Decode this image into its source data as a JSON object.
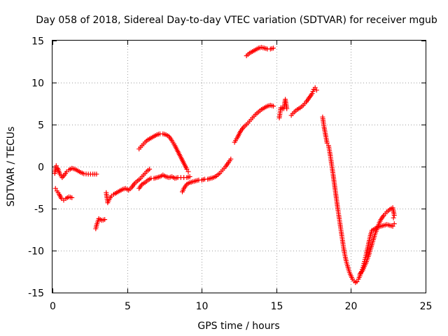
{
  "chart_data": {
    "type": "scatter",
    "title": "Day 058 of 2018, Sidereal Day-to-day VTEC variation (SDTVAR) for receiver mgub",
    "xlabel": "GPS time / hours",
    "ylabel": "SDTVAR / TECUs",
    "xlim": [
      0,
      25
    ],
    "ylim": [
      -15,
      15
    ],
    "xticks": [
      0,
      5,
      10,
      15,
      20,
      25
    ],
    "yticks": [
      -15,
      -10,
      -5,
      0,
      5,
      10,
      15
    ],
    "grid": true,
    "marker": "plus",
    "color": "#ff0000",
    "series": [
      {
        "points": [
          [
            0.15,
            -0.8
          ],
          [
            0.25,
            0.1
          ],
          [
            0.35,
            -0.2
          ],
          [
            0.5,
            -0.9
          ],
          [
            0.65,
            -1.3
          ],
          [
            0.8,
            -1.0
          ],
          [
            0.95,
            -0.6
          ],
          [
            1.1,
            -0.4
          ],
          [
            1.3,
            -0.2
          ],
          [
            1.5,
            -0.3
          ],
          [
            1.7,
            -0.5
          ],
          [
            1.9,
            -0.7
          ],
          [
            2.1,
            -0.85
          ],
          [
            2.4,
            -0.9
          ],
          [
            2.7,
            -0.9
          ],
          [
            2.95,
            -0.9
          ]
        ]
      },
      {
        "points": [
          [
            0.2,
            -2.6
          ],
          [
            0.3,
            -2.9
          ],
          [
            0.45,
            -3.3
          ],
          [
            0.6,
            -3.8
          ],
          [
            0.75,
            -4.0
          ],
          [
            0.9,
            -3.8
          ],
          [
            1.1,
            -3.6
          ],
          [
            1.3,
            -3.7
          ]
        ]
      },
      {
        "points": [
          [
            2.9,
            -7.4
          ],
          [
            2.95,
            -7.0
          ],
          [
            3.1,
            -6.2
          ],
          [
            3.3,
            -6.4
          ],
          [
            3.5,
            -6.3
          ]
        ]
      },
      {
        "points": [
          [
            3.6,
            -3.1
          ],
          [
            3.7,
            -4.3
          ],
          [
            3.8,
            -3.9
          ],
          [
            3.95,
            -3.5
          ],
          [
            4.1,
            -3.3
          ],
          [
            4.3,
            -3.1
          ],
          [
            4.5,
            -2.9
          ],
          [
            4.7,
            -2.7
          ],
          [
            4.9,
            -2.6
          ],
          [
            5.1,
            -2.8
          ],
          [
            5.3,
            -2.5
          ],
          [
            5.5,
            -2.0
          ],
          [
            5.7,
            -1.7
          ],
          [
            5.9,
            -1.4
          ],
          [
            6.1,
            -1.0
          ],
          [
            6.3,
            -0.6
          ],
          [
            6.5,
            -0.3
          ]
        ]
      },
      {
        "points": [
          [
            5.8,
            -2.6
          ],
          [
            6.0,
            -2.1
          ],
          [
            6.2,
            -1.9
          ],
          [
            6.4,
            -1.6
          ],
          [
            6.6,
            -1.4
          ],
          [
            6.8,
            -1.4
          ],
          [
            7.0,
            -1.3
          ],
          [
            7.2,
            -1.2
          ],
          [
            7.4,
            -1.0
          ],
          [
            7.6,
            -1.2
          ],
          [
            7.8,
            -1.3
          ],
          [
            8.0,
            -1.2
          ],
          [
            8.2,
            -1.4
          ],
          [
            8.4,
            -1.3
          ],
          [
            8.6,
            -1.3
          ],
          [
            8.8,
            -1.3
          ],
          [
            9.0,
            -1.3
          ],
          [
            9.2,
            -1.2
          ]
        ]
      },
      {
        "points": [
          [
            5.8,
            2.1
          ],
          [
            6.0,
            2.5
          ],
          [
            6.2,
            2.9
          ],
          [
            6.4,
            3.2
          ],
          [
            6.6,
            3.4
          ],
          [
            6.8,
            3.6
          ],
          [
            7.0,
            3.8
          ],
          [
            7.2,
            3.9
          ],
          [
            7.4,
            3.9
          ],
          [
            7.6,
            3.8
          ],
          [
            7.8,
            3.6
          ],
          [
            8.0,
            3.1
          ],
          [
            8.2,
            2.5
          ],
          [
            8.4,
            1.8
          ],
          [
            8.6,
            1.1
          ],
          [
            8.8,
            0.4
          ],
          [
            9.0,
            -0.3
          ],
          [
            9.1,
            -0.6
          ]
        ]
      },
      {
        "points": [
          [
            8.7,
            -3.0
          ],
          [
            8.8,
            -2.6
          ],
          [
            9.0,
            -2.1
          ],
          [
            9.2,
            -1.9
          ],
          [
            9.4,
            -1.8
          ],
          [
            9.6,
            -1.7
          ],
          [
            9.8,
            -1.6
          ],
          [
            10.0,
            -1.6
          ],
          [
            10.2,
            -1.5
          ],
          [
            10.4,
            -1.5
          ],
          [
            10.6,
            -1.4
          ],
          [
            10.8,
            -1.3
          ],
          [
            11.0,
            -1.1
          ],
          [
            11.2,
            -0.8
          ],
          [
            11.4,
            -0.4
          ],
          [
            11.6,
            0.0
          ],
          [
            11.8,
            0.5
          ],
          [
            11.95,
            0.9
          ]
        ]
      },
      {
        "points": [
          [
            12.2,
            2.9
          ],
          [
            12.4,
            3.5
          ],
          [
            12.6,
            4.2
          ],
          [
            12.8,
            4.7
          ],
          [
            13.0,
            5.0
          ],
          [
            13.2,
            5.4
          ],
          [
            13.4,
            5.8
          ],
          [
            13.6,
            6.2
          ],
          [
            13.8,
            6.5
          ],
          [
            14.0,
            6.8
          ],
          [
            14.2,
            7.0
          ],
          [
            14.4,
            7.2
          ],
          [
            14.6,
            7.3
          ],
          [
            14.8,
            7.2
          ]
        ]
      },
      {
        "points": [
          [
            13.0,
            13.2
          ],
          [
            13.2,
            13.5
          ],
          [
            13.4,
            13.7
          ],
          [
            13.6,
            13.9
          ],
          [
            13.8,
            14.1
          ],
          [
            14.0,
            14.2
          ],
          [
            14.2,
            14.1
          ],
          [
            14.4,
            14.0
          ],
          [
            14.6,
            14.0
          ],
          [
            14.8,
            14.1
          ]
        ]
      },
      {
        "points": [
          [
            15.2,
            5.8
          ],
          [
            15.3,
            7.0
          ],
          [
            15.5,
            6.9
          ],
          [
            15.6,
            8.0
          ],
          [
            15.7,
            6.9
          ]
        ]
      },
      {
        "points": [
          [
            16.0,
            6.1
          ],
          [
            16.2,
            6.5
          ],
          [
            16.4,
            6.8
          ],
          [
            16.6,
            7.0
          ],
          [
            16.8,
            7.3
          ],
          [
            17.0,
            7.7
          ],
          [
            17.2,
            8.2
          ],
          [
            17.4,
            8.7
          ],
          [
            17.5,
            9.2
          ],
          [
            17.6,
            9.4
          ],
          [
            17.7,
            9.1
          ]
        ]
      },
      {
        "points": [
          [
            18.1,
            5.9
          ],
          [
            18.2,
            4.7
          ],
          [
            18.4,
            2.8
          ],
          [
            18.5,
            2.5
          ],
          [
            18.6,
            1.5
          ],
          [
            18.7,
            0.3
          ],
          [
            18.8,
            -0.9
          ],
          [
            18.9,
            -2.2
          ],
          [
            19.0,
            -3.5
          ],
          [
            19.1,
            -4.8
          ],
          [
            19.2,
            -6.0
          ],
          [
            19.3,
            -7.2
          ],
          [
            19.4,
            -8.4
          ],
          [
            19.5,
            -9.6
          ],
          [
            19.6,
            -10.6
          ],
          [
            19.7,
            -11.4
          ],
          [
            19.8,
            -12.0
          ],
          [
            19.9,
            -12.6
          ],
          [
            20.0,
            -13.0
          ],
          [
            20.1,
            -13.4
          ],
          [
            20.2,
            -13.6
          ],
          [
            20.3,
            -13.8
          ],
          [
            20.4,
            -13.7
          ],
          [
            20.5,
            -13.4
          ],
          [
            20.6,
            -13.0
          ],
          [
            20.7,
            -12.5
          ],
          [
            20.8,
            -12.0
          ],
          [
            20.9,
            -11.3
          ],
          [
            21.0,
            -10.6
          ],
          [
            21.1,
            -9.8
          ],
          [
            21.2,
            -9.0
          ],
          [
            21.3,
            -8.2
          ],
          [
            21.4,
            -7.6
          ],
          [
            21.6,
            -7.4
          ],
          [
            21.8,
            -7.2
          ],
          [
            22.0,
            -7.1
          ],
          [
            22.2,
            -7.0
          ],
          [
            22.4,
            -6.9
          ],
          [
            22.6,
            -7.0
          ],
          [
            22.8,
            -7.1
          ],
          [
            22.9,
            -6.8
          ]
        ]
      },
      {
        "points": [
          [
            20.6,
            -12.8
          ],
          [
            20.8,
            -12.3
          ],
          [
            21.0,
            -11.5
          ],
          [
            21.2,
            -10.5
          ],
          [
            21.4,
            -9.3
          ],
          [
            21.6,
            -8.1
          ],
          [
            21.8,
            -7.1
          ],
          [
            22.0,
            -6.3
          ],
          [
            22.2,
            -5.8
          ],
          [
            22.4,
            -5.4
          ],
          [
            22.6,
            -5.1
          ],
          [
            22.8,
            -4.9
          ],
          [
            22.9,
            -5.8
          ],
          [
            22.85,
            -6.1
          ]
        ]
      }
    ]
  }
}
